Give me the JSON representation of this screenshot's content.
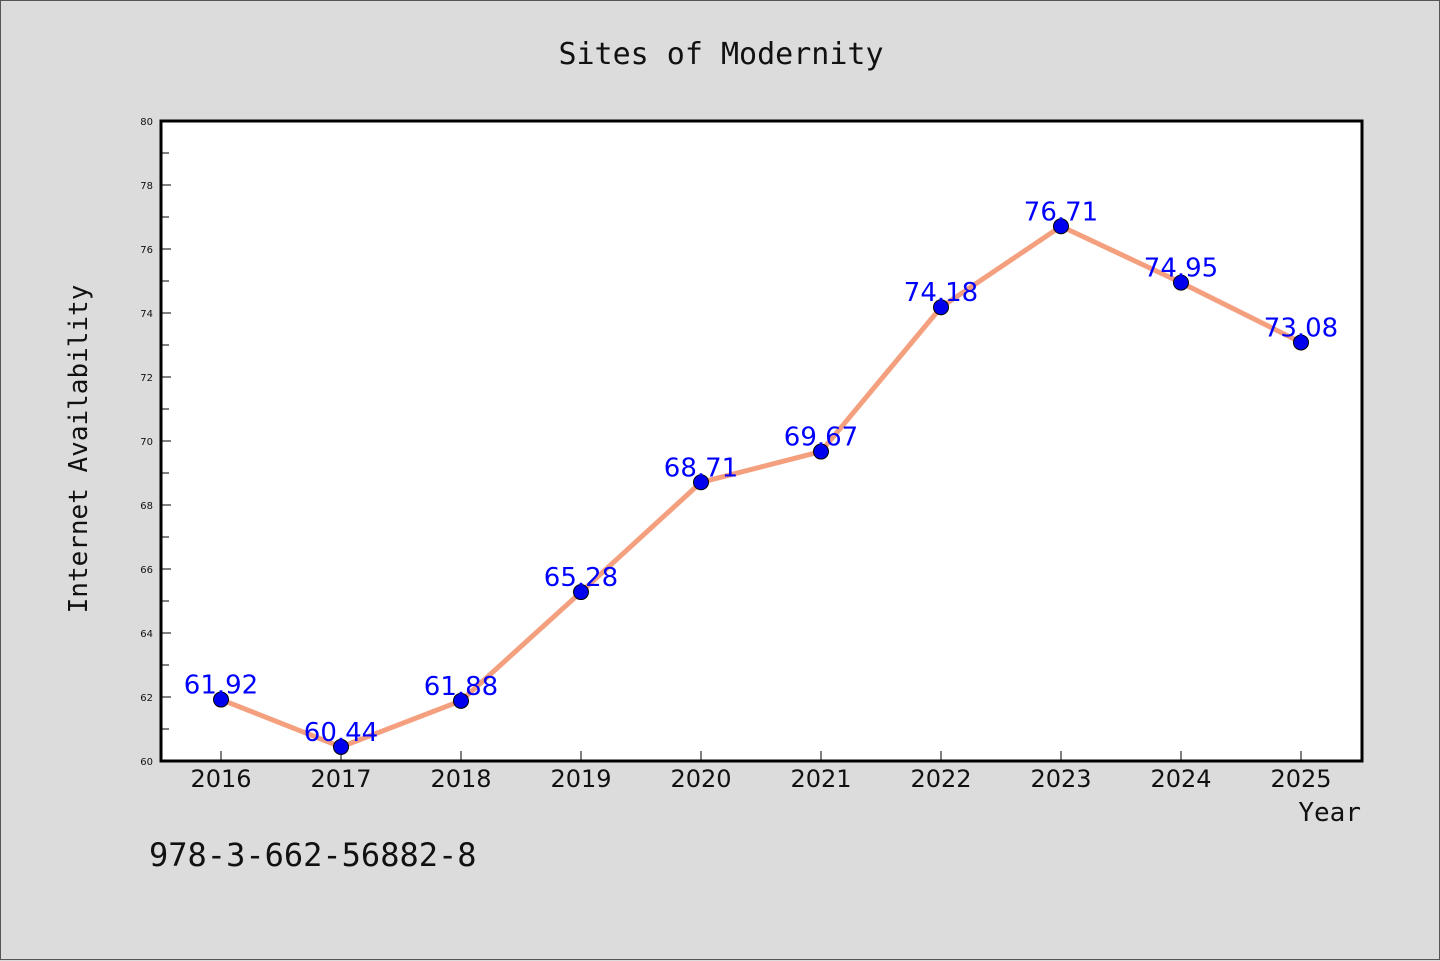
{
  "chart_data": {
    "type": "line",
    "title": "Sites of Modernity",
    "xlabel": "Year",
    "ylabel": "Internet Availability",
    "categories": [
      "2016",
      "2017",
      "2018",
      "2019",
      "2020",
      "2021",
      "2022",
      "2023",
      "2024",
      "2025"
    ],
    "series": [
      {
        "values": [
          61.92,
          60.44,
          61.88,
          65.28,
          68.71,
          69.67,
          74.18,
          76.71,
          74.95,
          73.08
        ],
        "labels": [
          "61.92",
          "60.44",
          "61.88",
          "65.28",
          "68.71",
          "69.67",
          "74.18",
          "76.71",
          "74.95",
          "73.08"
        ],
        "line_color": "#f4a07e",
        "marker_color": "#0000ee"
      }
    ],
    "ylim": [
      60,
      80
    ],
    "yticks": [
      "60",
      "62",
      "64",
      "66",
      "68",
      "70",
      "72",
      "74",
      "76",
      "78",
      "80"
    ],
    "grid": false,
    "legend": "none"
  },
  "footer": {
    "isbn": "978-3-662-56882-8"
  }
}
